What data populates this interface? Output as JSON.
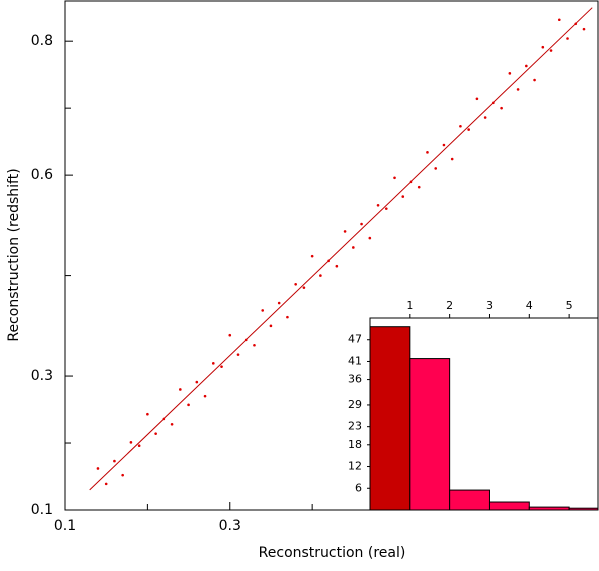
{
  "chart_data": [
    {
      "type": "scatter",
      "xlabel": "Reconstruction (real)",
      "ylabel": "Reconstruction (redshift)",
      "color": "#e00000",
      "xlim": [
        0.1,
        0.747
      ],
      "xticks": [
        0.1,
        0.3
      ],
      "xminorticks": [
        0.2,
        0.4,
        0.5,
        0.6,
        0.7
      ],
      "ylim": [
        0.1,
        0.86
      ],
      "yticks": [
        0.1,
        0.3,
        0.6,
        0.8
      ],
      "yminorticks": [
        0.2,
        0.45,
        0.7
      ],
      "x": [
        0.14,
        0.15,
        0.16,
        0.17,
        0.18,
        0.19,
        0.2,
        0.21,
        0.22,
        0.23,
        0.24,
        0.25,
        0.26,
        0.27,
        0.28,
        0.29,
        0.3,
        0.31,
        0.32,
        0.33,
        0.34,
        0.35,
        0.36,
        0.37,
        0.38,
        0.39,
        0.4,
        0.41,
        0.42,
        0.43,
        0.44,
        0.45,
        0.46,
        0.47,
        0.48,
        0.49,
        0.5,
        0.51,
        0.52,
        0.53,
        0.54,
        0.55,
        0.56,
        0.57,
        0.58,
        0.59,
        0.6,
        0.61,
        0.62,
        0.63,
        0.64,
        0.65,
        0.66,
        0.67,
        0.68,
        0.69,
        0.7,
        0.71,
        0.72,
        0.73
      ],
      "y": [
        0.162,
        0.139,
        0.173,
        0.152,
        0.201,
        0.196,
        0.243,
        0.214,
        0.236,
        0.228,
        0.28,
        0.257,
        0.291,
        0.27,
        0.319,
        0.314,
        0.361,
        0.332,
        0.354,
        0.346,
        0.398,
        0.375,
        0.409,
        0.388,
        0.437,
        0.432,
        0.479,
        0.45,
        0.472,
        0.464,
        0.516,
        0.492,
        0.527,
        0.506,
        0.555,
        0.55,
        0.596,
        0.568,
        0.59,
        0.582,
        0.634,
        0.61,
        0.645,
        0.624,
        0.673,
        0.668,
        0.714,
        0.686,
        0.708,
        0.7,
        0.752,
        0.728,
        0.763,
        0.742,
        0.791,
        0.786,
        0.832,
        0.804,
        0.826,
        0.818
      ],
      "line": {
        "x": [
          0.13,
          0.74
        ],
        "y": [
          0.13,
          0.85
        ],
        "color": "#c00000"
      }
    },
    {
      "type": "histogram",
      "bins": [
        0,
        1,
        2,
        3,
        4,
        5,
        6
      ],
      "counts": [
        50.6,
        41.8,
        5.5,
        2.2,
        0.8,
        0.5
      ],
      "colors": [
        "#c80000",
        "#ff0050",
        "#ff0050",
        "#ff0050",
        "#ff0050",
        "#ff0050"
      ],
      "xlim": [
        0,
        5.725
      ],
      "xticks": [
        1,
        2,
        3,
        4,
        5
      ],
      "ylim": [
        0,
        53
      ],
      "yticks": [
        6,
        12,
        18,
        23,
        29,
        36,
        41,
        47
      ]
    }
  ]
}
